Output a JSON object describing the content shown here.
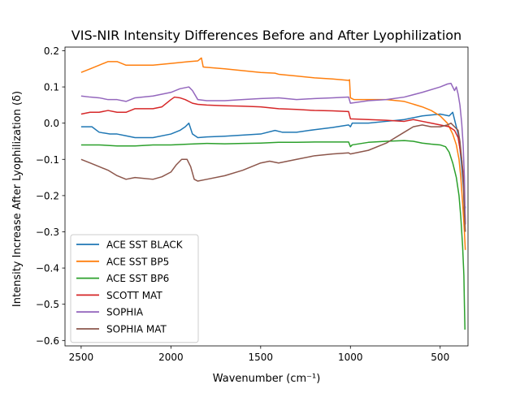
{
  "chart_data": {
    "type": "line",
    "title": "VIS-NIR Intensity Differences Before and After Lyophilization",
    "xlabel": "Wavenumber (cm⁻¹)",
    "ylabel": "Intensity Increase After Lyophilization (δ)",
    "xlim": [
      2590,
      345
    ],
    "ylim": [
      -0.615,
      0.21
    ],
    "x_inverted": true,
    "xticks": [
      2500,
      2000,
      1500,
      1000,
      500
    ],
    "yticks": [
      0.2,
      0.1,
      0.0,
      -0.1,
      -0.2,
      -0.3,
      -0.4,
      -0.5,
      -0.6
    ],
    "grid": false,
    "legend_position": "lower-left",
    "series": [
      {
        "name": "ACE SST BLACK",
        "color": "#1f77b4",
        "points": [
          [
            2500,
            -0.01
          ],
          [
            2440,
            -0.01
          ],
          [
            2400,
            -0.025
          ],
          [
            2340,
            -0.03
          ],
          [
            2300,
            -0.03
          ],
          [
            2250,
            -0.035
          ],
          [
            2200,
            -0.04
          ],
          [
            2100,
            -0.04
          ],
          [
            2000,
            -0.03
          ],
          [
            1950,
            -0.02
          ],
          [
            1920,
            -0.01
          ],
          [
            1900,
            0.0
          ],
          [
            1880,
            -0.03
          ],
          [
            1850,
            -0.04
          ],
          [
            1800,
            -0.038
          ],
          [
            1700,
            -0.036
          ],
          [
            1600,
            -0.033
          ],
          [
            1500,
            -0.03
          ],
          [
            1420,
            -0.02
          ],
          [
            1380,
            -0.025
          ],
          [
            1300,
            -0.025
          ],
          [
            1200,
            -0.018
          ],
          [
            1100,
            -0.012
          ],
          [
            1010,
            -0.005
          ],
          [
            1000,
            -0.01
          ],
          [
            990,
            0.0
          ],
          [
            900,
            0.0
          ],
          [
            800,
            0.005
          ],
          [
            700,
            0.01
          ],
          [
            600,
            0.02
          ],
          [
            500,
            0.025
          ],
          [
            450,
            0.02
          ],
          [
            430,
            0.03
          ],
          [
            415,
            0.0
          ],
          [
            400,
            -0.03
          ],
          [
            390,
            -0.07
          ],
          [
            380,
            -0.12
          ],
          [
            370,
            -0.18
          ],
          [
            365,
            -0.25
          ],
          [
            360,
            -0.23
          ]
        ]
      },
      {
        "name": "ACE SST BP5",
        "color": "#ff7f0e",
        "points": [
          [
            2500,
            0.14
          ],
          [
            2450,
            0.15
          ],
          [
            2400,
            0.16
          ],
          [
            2350,
            0.17
          ],
          [
            2300,
            0.17
          ],
          [
            2250,
            0.16
          ],
          [
            2200,
            0.16
          ],
          [
            2100,
            0.16
          ],
          [
            2000,
            0.165
          ],
          [
            1900,
            0.17
          ],
          [
            1850,
            0.172
          ],
          [
            1830,
            0.18
          ],
          [
            1820,
            0.155
          ],
          [
            1700,
            0.15
          ],
          [
            1600,
            0.145
          ],
          [
            1500,
            0.14
          ],
          [
            1420,
            0.138
          ],
          [
            1400,
            0.135
          ],
          [
            1300,
            0.13
          ],
          [
            1200,
            0.125
          ],
          [
            1100,
            0.122
          ],
          [
            1010,
            0.118
          ],
          [
            1005,
            0.12
          ],
          [
            1000,
            0.07
          ],
          [
            980,
            0.065
          ],
          [
            900,
            0.065
          ],
          [
            800,
            0.065
          ],
          [
            700,
            0.06
          ],
          [
            600,
            0.045
          ],
          [
            550,
            0.035
          ],
          [
            500,
            0.02
          ],
          [
            460,
            0.0
          ],
          [
            430,
            -0.03
          ],
          [
            410,
            -0.06
          ],
          [
            395,
            -0.1
          ],
          [
            385,
            -0.15
          ],
          [
            375,
            -0.22
          ],
          [
            365,
            -0.3
          ],
          [
            360,
            -0.35
          ]
        ]
      },
      {
        "name": "ACE SST BP6",
        "color": "#2ca02c",
        "points": [
          [
            2500,
            -0.06
          ],
          [
            2400,
            -0.06
          ],
          [
            2300,
            -0.063
          ],
          [
            2200,
            -0.063
          ],
          [
            2100,
            -0.06
          ],
          [
            2000,
            -0.06
          ],
          [
            1900,
            -0.058
          ],
          [
            1800,
            -0.056
          ],
          [
            1700,
            -0.057
          ],
          [
            1600,
            -0.056
          ],
          [
            1500,
            -0.055
          ],
          [
            1400,
            -0.053
          ],
          [
            1300,
            -0.053
          ],
          [
            1200,
            -0.052
          ],
          [
            1100,
            -0.052
          ],
          [
            1010,
            -0.052
          ],
          [
            1000,
            -0.065
          ],
          [
            990,
            -0.06
          ],
          [
            900,
            -0.053
          ],
          [
            800,
            -0.05
          ],
          [
            700,
            -0.048
          ],
          [
            650,
            -0.05
          ],
          [
            600,
            -0.055
          ],
          [
            550,
            -0.058
          ],
          [
            500,
            -0.06
          ],
          [
            470,
            -0.065
          ],
          [
            450,
            -0.08
          ],
          [
            430,
            -0.11
          ],
          [
            410,
            -0.15
          ],
          [
            395,
            -0.2
          ],
          [
            385,
            -0.26
          ],
          [
            375,
            -0.34
          ],
          [
            368,
            -0.42
          ],
          [
            365,
            -0.5
          ],
          [
            362,
            -0.57
          ]
        ]
      },
      {
        "name": "SCOTT MAT",
        "color": "#d62728",
        "points": [
          [
            2500,
            0.025
          ],
          [
            2450,
            0.03
          ],
          [
            2400,
            0.03
          ],
          [
            2350,
            0.035
          ],
          [
            2300,
            0.03
          ],
          [
            2250,
            0.03
          ],
          [
            2200,
            0.04
          ],
          [
            2100,
            0.04
          ],
          [
            2050,
            0.045
          ],
          [
            2000,
            0.065
          ],
          [
            1980,
            0.072
          ],
          [
            1950,
            0.07
          ],
          [
            1920,
            0.065
          ],
          [
            1880,
            0.055
          ],
          [
            1850,
            0.052
          ],
          [
            1800,
            0.05
          ],
          [
            1700,
            0.048
          ],
          [
            1600,
            0.047
          ],
          [
            1500,
            0.045
          ],
          [
            1400,
            0.04
          ],
          [
            1300,
            0.038
          ],
          [
            1200,
            0.035
          ],
          [
            1100,
            0.034
          ],
          [
            1010,
            0.032
          ],
          [
            1000,
            0.012
          ],
          [
            900,
            0.01
          ],
          [
            800,
            0.008
          ],
          [
            700,
            0.005
          ],
          [
            650,
            0.01
          ],
          [
            600,
            0.005
          ],
          [
            550,
            0.0
          ],
          [
            500,
            -0.005
          ],
          [
            450,
            -0.01
          ],
          [
            420,
            -0.02
          ],
          [
            400,
            -0.04
          ],
          [
            390,
            -0.07
          ],
          [
            380,
            -0.1
          ],
          [
            370,
            -0.15
          ],
          [
            365,
            -0.2
          ],
          [
            360,
            -0.28
          ]
        ]
      },
      {
        "name": "SOPHIA",
        "color": "#9467bd",
        "points": [
          [
            2500,
            0.075
          ],
          [
            2450,
            0.072
          ],
          [
            2400,
            0.07
          ],
          [
            2350,
            0.065
          ],
          [
            2300,
            0.065
          ],
          [
            2250,
            0.06
          ],
          [
            2200,
            0.07
          ],
          [
            2100,
            0.075
          ],
          [
            2000,
            0.085
          ],
          [
            1950,
            0.095
          ],
          [
            1900,
            0.1
          ],
          [
            1880,
            0.09
          ],
          [
            1850,
            0.065
          ],
          [
            1800,
            0.062
          ],
          [
            1700,
            0.062
          ],
          [
            1600,
            0.065
          ],
          [
            1500,
            0.068
          ],
          [
            1400,
            0.07
          ],
          [
            1300,
            0.065
          ],
          [
            1200,
            0.068
          ],
          [
            1100,
            0.07
          ],
          [
            1010,
            0.072
          ],
          [
            1000,
            0.055
          ],
          [
            900,
            0.062
          ],
          [
            800,
            0.065
          ],
          [
            700,
            0.072
          ],
          [
            600,
            0.085
          ],
          [
            500,
            0.1
          ],
          [
            460,
            0.108
          ],
          [
            440,
            0.11
          ],
          [
            420,
            0.09
          ],
          [
            410,
            0.1
          ],
          [
            400,
            0.08
          ],
          [
            390,
            0.05
          ],
          [
            380,
            0.0
          ],
          [
            372,
            -0.06
          ],
          [
            365,
            -0.15
          ],
          [
            360,
            -0.28
          ]
        ]
      },
      {
        "name": "SOPHIA MAT",
        "color": "#8c564b",
        "points": [
          [
            2500,
            -0.1
          ],
          [
            2450,
            -0.11
          ],
          [
            2400,
            -0.12
          ],
          [
            2350,
            -0.13
          ],
          [
            2300,
            -0.145
          ],
          [
            2250,
            -0.155
          ],
          [
            2200,
            -0.15
          ],
          [
            2100,
            -0.155
          ],
          [
            2050,
            -0.148
          ],
          [
            2000,
            -0.135
          ],
          [
            1970,
            -0.115
          ],
          [
            1940,
            -0.1
          ],
          [
            1910,
            -0.1
          ],
          [
            1890,
            -0.12
          ],
          [
            1870,
            -0.155
          ],
          [
            1850,
            -0.16
          ],
          [
            1800,
            -0.155
          ],
          [
            1700,
            -0.145
          ],
          [
            1600,
            -0.13
          ],
          [
            1500,
            -0.11
          ],
          [
            1450,
            -0.105
          ],
          [
            1400,
            -0.11
          ],
          [
            1300,
            -0.1
          ],
          [
            1200,
            -0.09
          ],
          [
            1100,
            -0.085
          ],
          [
            1010,
            -0.082
          ],
          [
            1000,
            -0.085
          ],
          [
            900,
            -0.075
          ],
          [
            800,
            -0.055
          ],
          [
            700,
            -0.025
          ],
          [
            650,
            -0.01
          ],
          [
            600,
            -0.005
          ],
          [
            550,
            -0.01
          ],
          [
            500,
            -0.01
          ],
          [
            460,
            -0.005
          ],
          [
            440,
            0.0
          ],
          [
            420,
            -0.01
          ],
          [
            400,
            -0.02
          ],
          [
            390,
            -0.05
          ],
          [
            380,
            -0.1
          ],
          [
            370,
            -0.17
          ],
          [
            365,
            -0.25
          ],
          [
            360,
            -0.3
          ]
        ]
      }
    ]
  }
}
